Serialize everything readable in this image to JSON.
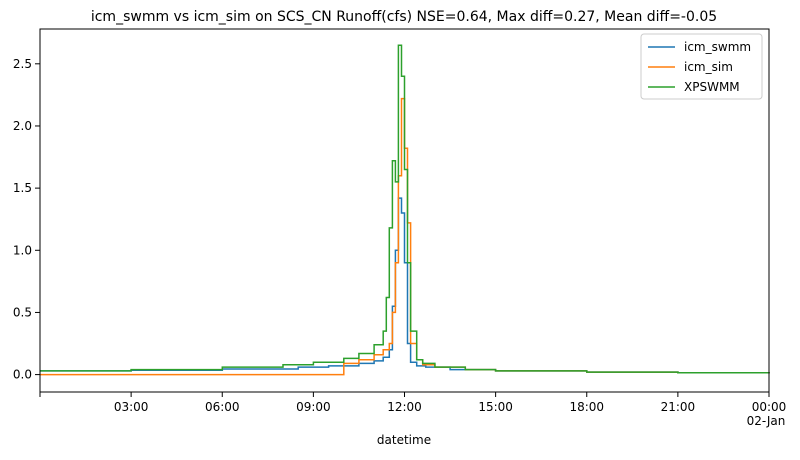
{
  "chart_data": {
    "type": "line",
    "title": "icm_swmm vs icm_sim on SCS_CN Runoff(cfs) NSE=0.64, Max diff=0.27, Mean diff=-0.05",
    "xlabel": "datetime",
    "ylabel": "",
    "x_unit": "hours",
    "xlim": [
      0,
      24
    ],
    "ylim": [
      -0.14,
      2.78
    ],
    "x_ticks": [
      {
        "value": 3,
        "label": "03:00"
      },
      {
        "value": 6,
        "label": "06:00"
      },
      {
        "value": 9,
        "label": "09:00"
      },
      {
        "value": 12,
        "label": "12:00"
      },
      {
        "value": 15,
        "label": "15:00"
      },
      {
        "value": 18,
        "label": "18:00"
      },
      {
        "value": 21,
        "label": "21:00"
      },
      {
        "value": 24,
        "label": "00:00",
        "sublabel": "02-Jan"
      }
    ],
    "y_ticks": [
      {
        "value": 0.0,
        "label": "0.0"
      },
      {
        "value": 0.5,
        "label": "0.5"
      },
      {
        "value": 1.0,
        "label": "1.0"
      },
      {
        "value": 1.5,
        "label": "1.5"
      },
      {
        "value": 2.0,
        "label": "2.0"
      },
      {
        "value": 2.5,
        "label": "2.5"
      }
    ],
    "grid": false,
    "legend_position": "top-right",
    "series": [
      {
        "name": "icm_swmm",
        "color": "#1f77b4",
        "x": [
          0,
          3,
          6,
          8.5,
          9.5,
          10.5,
          11,
          11.3,
          11.5,
          11.6,
          11.7,
          11.8,
          11.9,
          12.0,
          12.1,
          12.2,
          12.4,
          12.7,
          13.5,
          15,
          18,
          21,
          24
        ],
        "y": [
          0.03,
          0.035,
          0.045,
          0.06,
          0.07,
          0.09,
          0.11,
          0.14,
          0.2,
          0.55,
          1.0,
          1.42,
          1.3,
          0.9,
          0.25,
          0.1,
          0.07,
          0.06,
          0.04,
          0.03,
          0.02,
          0.015,
          0.01
        ]
      },
      {
        "name": "icm_sim",
        "color": "#ff7f0e",
        "x": [
          0,
          9.98,
          10.0,
          10.5,
          11,
          11.3,
          11.5,
          11.6,
          11.7,
          11.8,
          11.9,
          12.0,
          12.1,
          12.2,
          12.4,
          12.6,
          13.0,
          14,
          15,
          18,
          21,
          24
        ],
        "y": [
          0.0,
          0.0,
          0.09,
          0.12,
          0.16,
          0.2,
          0.25,
          0.5,
          0.9,
          1.6,
          2.22,
          1.82,
          1.22,
          0.25,
          0.12,
          0.08,
          0.06,
          0.04,
          0.03,
          0.02,
          0.015,
          0.01
        ]
      },
      {
        "name": "XPSWMM",
        "color": "#2ca02c",
        "x": [
          0,
          3,
          6,
          8,
          9,
          10,
          10.5,
          11,
          11.3,
          11.4,
          11.5,
          11.6,
          11.7,
          11.8,
          11.9,
          12.0,
          12.1,
          12.2,
          12.4,
          12.6,
          13.0,
          14,
          15,
          18,
          21,
          24
        ],
        "y": [
          0.03,
          0.04,
          0.06,
          0.08,
          0.1,
          0.13,
          0.17,
          0.24,
          0.35,
          0.62,
          1.18,
          1.72,
          1.55,
          2.65,
          2.4,
          1.65,
          0.9,
          0.35,
          0.12,
          0.09,
          0.06,
          0.04,
          0.03,
          0.02,
          0.015,
          0.01
        ]
      }
    ]
  }
}
